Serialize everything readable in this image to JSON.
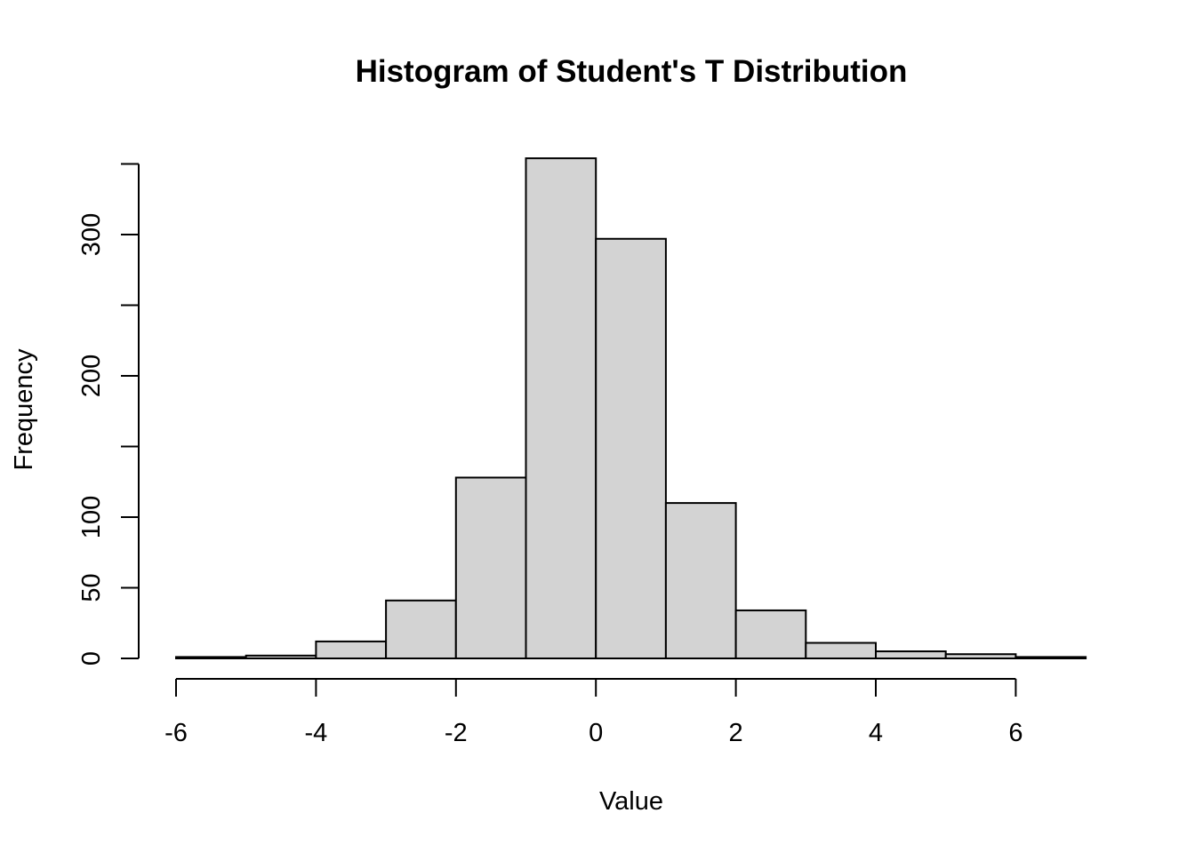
{
  "chart_data": {
    "type": "bar",
    "title": "Histogram of Student's T Distribution",
    "xlabel": "Value",
    "ylabel": "Frequency",
    "bin_edges": [
      -6,
      -5,
      -4,
      -3,
      -2,
      -1,
      0,
      1,
      2,
      3,
      4,
      5,
      6,
      7
    ],
    "values": [
      1,
      2,
      12,
      41,
      128,
      354,
      297,
      110,
      34,
      11,
      5,
      3,
      1
    ],
    "xlim": [
      -6,
      7
    ],
    "ylim": [
      0,
      350
    ],
    "x_ticks": [
      -6,
      -4,
      -2,
      0,
      2,
      4,
      6
    ],
    "x_tick_labels": [
      "-6",
      "-4",
      "-2",
      "0",
      "2",
      "4",
      "6"
    ],
    "y_ticks": [
      0,
      50,
      100,
      150,
      200,
      250,
      300,
      350
    ],
    "y_tick_labels": [
      "0",
      "50",
      "100",
      "",
      "200",
      "",
      "300",
      ""
    ],
    "bar_color": "#d3d3d3",
    "grid": false,
    "legend": "none"
  }
}
